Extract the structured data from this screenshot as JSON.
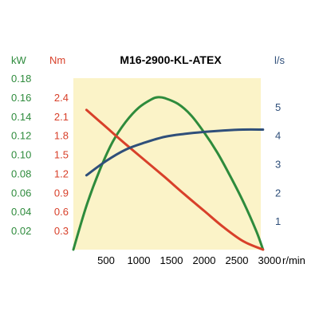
{
  "chart_data": {
    "type": "line",
    "title": "M16-2900-KL-ATEX",
    "xlabel": "r/min",
    "x_ticks": [
      500,
      1000,
      1500,
      2000,
      2500,
      3000
    ],
    "xlim": [
      0,
      3000
    ],
    "grid": false,
    "background_color": "#fbf3c8",
    "axes": {
      "power": {
        "unit": "kW",
        "color": "#2e8b3c",
        "ticks": [
          "0.02",
          "0.04",
          "0.06",
          "0.08",
          "0.10",
          "0.12",
          "0.14",
          "0.16",
          "0.18"
        ],
        "ylim": [
          0,
          0.18
        ]
      },
      "torque": {
        "unit": "Nm",
        "color": "#d8402a",
        "ticks": [
          "0.3",
          "0.6",
          "0.9",
          "1.2",
          "1.5",
          "1.8",
          "2.1",
          "2.4"
        ],
        "ylim": [
          0,
          2.7
        ]
      },
      "flow": {
        "unit": "l/s",
        "color": "#2f4f7a",
        "ticks": [
          "1",
          "2",
          "3",
          "4",
          "5"
        ],
        "ylim": [
          0,
          6
        ]
      }
    },
    "series": [
      {
        "axis": "power",
        "color": "#2e8b3c",
        "x": [
          0,
          200,
          400,
          600,
          800,
          1000,
          1200,
          1300,
          1400,
          1600,
          1800,
          2000,
          2200,
          2400,
          2600,
          2800,
          2900
        ],
        "y": [
          0,
          0.046,
          0.083,
          0.113,
          0.134,
          0.149,
          0.158,
          0.16,
          0.159,
          0.153,
          0.141,
          0.123,
          0.102,
          0.077,
          0.05,
          0.019,
          0
        ]
      },
      {
        "axis": "torque",
        "color": "#d8402a",
        "x": [
          200,
          500,
          800,
          1100,
          1400,
          1700,
          2000,
          2300,
          2600,
          2900
        ],
        "y": [
          2.2,
          1.93,
          1.66,
          1.4,
          1.14,
          0.87,
          0.61,
          0.35,
          0.13,
          0
        ]
      },
      {
        "axis": "flow",
        "color": "#2f4f7a",
        "x": [
          200,
          500,
          800,
          1100,
          1400,
          1700,
          2000,
          2300,
          2600,
          2900
        ],
        "y": [
          2.6,
          3.1,
          3.5,
          3.75,
          3.95,
          4.05,
          4.12,
          4.17,
          4.2,
          4.2
        ]
      }
    ]
  }
}
